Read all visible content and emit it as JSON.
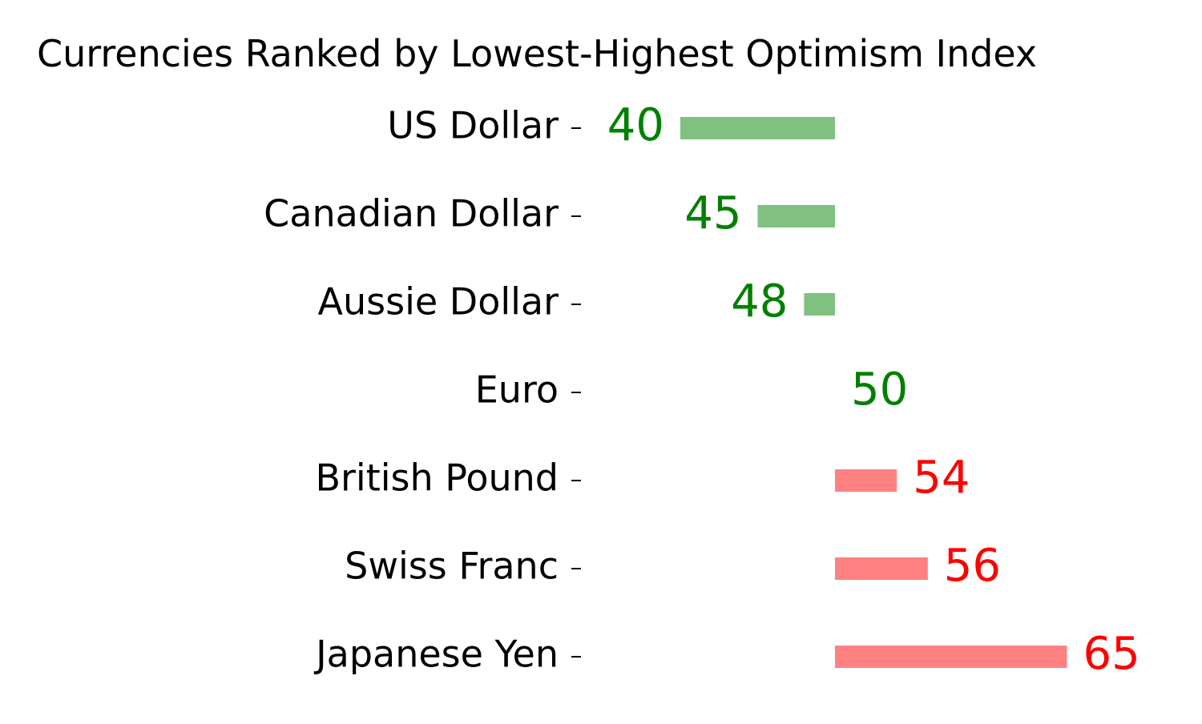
{
  "chart_data": {
    "type": "bar",
    "orientation": "horizontal",
    "title": "Currencies Ranked by Lowest-Highest Optimism Index",
    "xlabel": "",
    "ylabel": "",
    "baseline": 50,
    "xlim": [
      30,
      70
    ],
    "grid": false,
    "legend": "none",
    "categories": [
      "US Dollar",
      "Canadian Dollar",
      "Aussie Dollar",
      "Euro",
      "British Pound",
      "Swiss Franc",
      "Japanese Yen"
    ],
    "values": [
      40,
      45,
      48,
      50,
      54,
      56,
      65
    ],
    "colors": {
      "below_baseline_bar": "#80c080",
      "below_baseline_label": "#008000",
      "above_baseline_bar": "#ff8080",
      "above_baseline_label": "#ff0000",
      "tick_label": "#000000"
    }
  }
}
